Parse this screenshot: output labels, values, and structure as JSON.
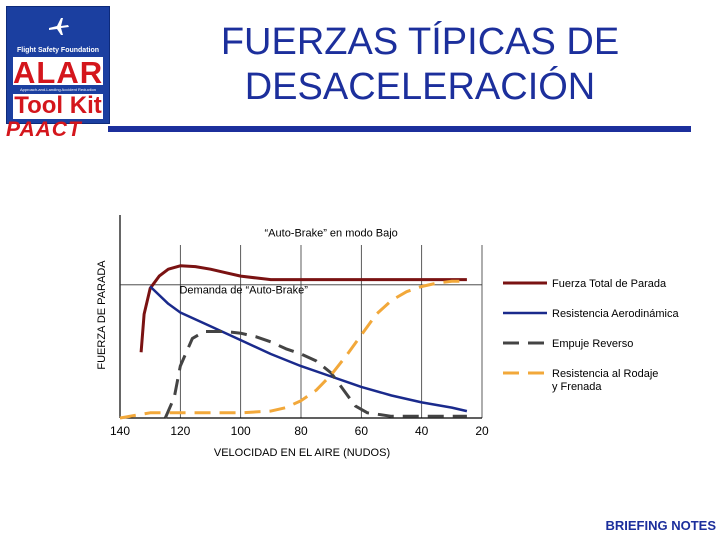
{
  "logo": {
    "org": "Flight Safety Foundation",
    "brand": "ALAR",
    "subtitle": "Approach-and-Landing Accident Reduction",
    "product": "Tool Kit",
    "mark": "PAACT"
  },
  "title": {
    "line1": "FUERZAS TÍPICAS DE",
    "line2": "DESACELERACIÓN"
  },
  "footer": "BRIEFING NOTES",
  "colors": {
    "title_blue": "#1c2f9c",
    "logo_red": "#d4161c",
    "total": "#7a1212",
    "aero": "#1a2a8c",
    "reverse": "#444444",
    "rolling": "#f2a83a"
  },
  "chart_data": {
    "type": "line",
    "xlabel": "VELOCIDAD EN EL AIRE (NUDOS)",
    "ylabel": "FUERZA DE PARADA",
    "x_ticks": [
      "140",
      "120",
      "100",
      "80",
      "60",
      "40",
      "20"
    ],
    "xlim": [
      140,
      20
    ],
    "ylim": [
      0,
      1
    ],
    "x_reversed": true,
    "grid": true,
    "legend_position": "right",
    "annotations": [
      {
        "text": "“Auto-Brake” en modo Bajo",
        "x": 70,
        "y": 1.05
      },
      {
        "text": "Demanda de “Auto-Brake”",
        "x": 99,
        "y": 0.72,
        "reference_level": 0.77
      }
    ],
    "series": [
      {
        "name": "Fuerza Total de Parada",
        "style": "solid",
        "color": "#7a1212",
        "x": [
          133,
          132,
          130,
          127,
          124,
          120,
          115,
          110,
          105,
          100,
          95,
          90,
          80,
          70,
          60,
          40,
          25
        ],
        "y": [
          0.38,
          0.6,
          0.75,
          0.82,
          0.86,
          0.88,
          0.875,
          0.86,
          0.84,
          0.82,
          0.81,
          0.8,
          0.8,
          0.8,
          0.8,
          0.8,
          0.8
        ]
      },
      {
        "name": "Resistencia Aerodinámica",
        "style": "solid",
        "color": "#1a2a8c",
        "x": [
          130,
          124,
          120,
          110,
          100,
          90,
          80,
          70,
          60,
          50,
          40,
          30,
          25
        ],
        "y": [
          0.76,
          0.66,
          0.61,
          0.53,
          0.45,
          0.37,
          0.3,
          0.24,
          0.18,
          0.13,
          0.09,
          0.06,
          0.04
        ]
      },
      {
        "name": "Empuje Reverso",
        "style": "dashed",
        "color": "#444444",
        "x": [
          125,
          122,
          120,
          116,
          112,
          105,
          100,
          95,
          90,
          85,
          80,
          75,
          70,
          65,
          62,
          58,
          50,
          40,
          30,
          25
        ],
        "y": [
          0.0,
          0.12,
          0.3,
          0.46,
          0.5,
          0.5,
          0.49,
          0.47,
          0.44,
          0.4,
          0.37,
          0.33,
          0.26,
          0.14,
          0.07,
          0.03,
          0.01,
          0.01,
          0.01,
          0.01
        ]
      },
      {
        "name": "Resistencia al Rodaje y Frenada",
        "style": "dashed",
        "color": "#f2a83a",
        "x": [
          140,
          130,
          120,
          110,
          100,
          90,
          85,
          80,
          75,
          70,
          65,
          60,
          55,
          50,
          45,
          40,
          35,
          30,
          25
        ],
        "y": [
          0.0,
          0.03,
          0.03,
          0.03,
          0.03,
          0.04,
          0.06,
          0.1,
          0.16,
          0.25,
          0.36,
          0.48,
          0.6,
          0.68,
          0.73,
          0.76,
          0.78,
          0.79,
          0.79
        ]
      }
    ]
  }
}
